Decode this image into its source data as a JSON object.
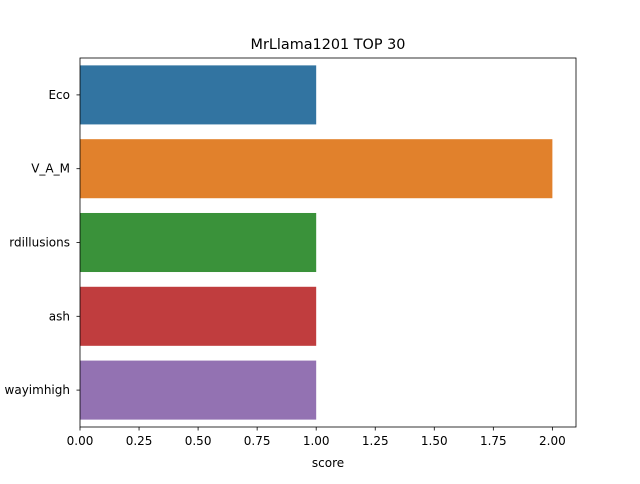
{
  "chart_data": {
    "type": "bar",
    "orientation": "horizontal",
    "title": "MrLlama1201 TOP 30",
    "xlabel": "score",
    "ylabel": "",
    "xlim": [
      0,
      2.1
    ],
    "x_ticks": [
      "0.00",
      "0.25",
      "0.50",
      "0.75",
      "1.00",
      "1.25",
      "1.50",
      "1.75",
      "2.00"
    ],
    "categories": [
      "Eco",
      "V_A_M",
      "rdillusions",
      "ash",
      "wayimhigh"
    ],
    "values": [
      1,
      2,
      1,
      1,
      1
    ],
    "colors": [
      "#3274a1",
      "#e1812c",
      "#3a923a",
      "#c03d3e",
      "#9372b2"
    ],
    "grid": false,
    "legend": "none"
  }
}
